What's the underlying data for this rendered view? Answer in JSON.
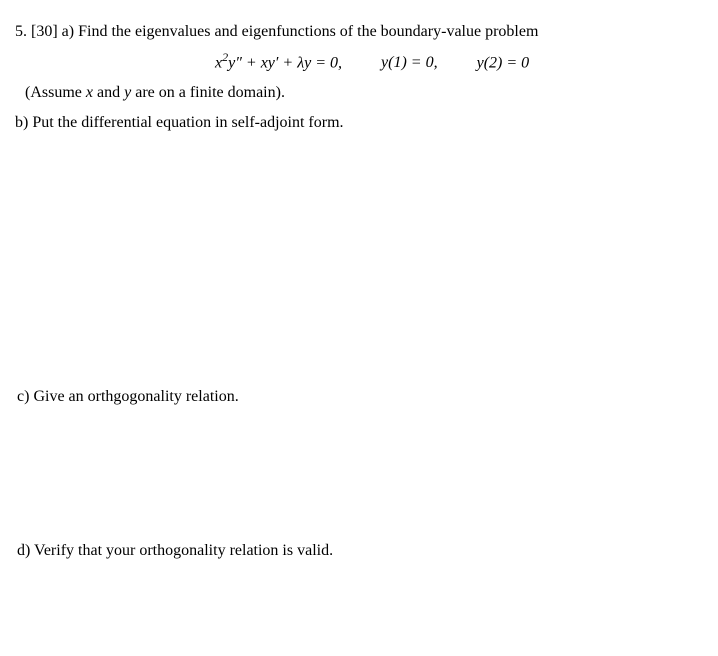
{
  "problem": {
    "number": "5.",
    "points": "[30]",
    "part_a_label": "a)",
    "part_a_text": "Find the eigenvalues and eigenfunctions of the boundary-value problem",
    "equation": {
      "ode": "x²y″ + xy′ + λy = 0,",
      "bc1": "y(1) = 0,",
      "bc2": "y(2) = 0"
    },
    "assumption": "(Assume x and y are on a finite domain).",
    "part_b_label": "b)",
    "part_b_text": "Put the differential equation in self-adjoint form.",
    "part_c_label": "c)",
    "part_c_text": "Give an orthgogonality relation.",
    "part_d_label": "d)",
    "part_d_text": "Verify that your orthogonality relation is valid."
  },
  "watermark": ""
}
